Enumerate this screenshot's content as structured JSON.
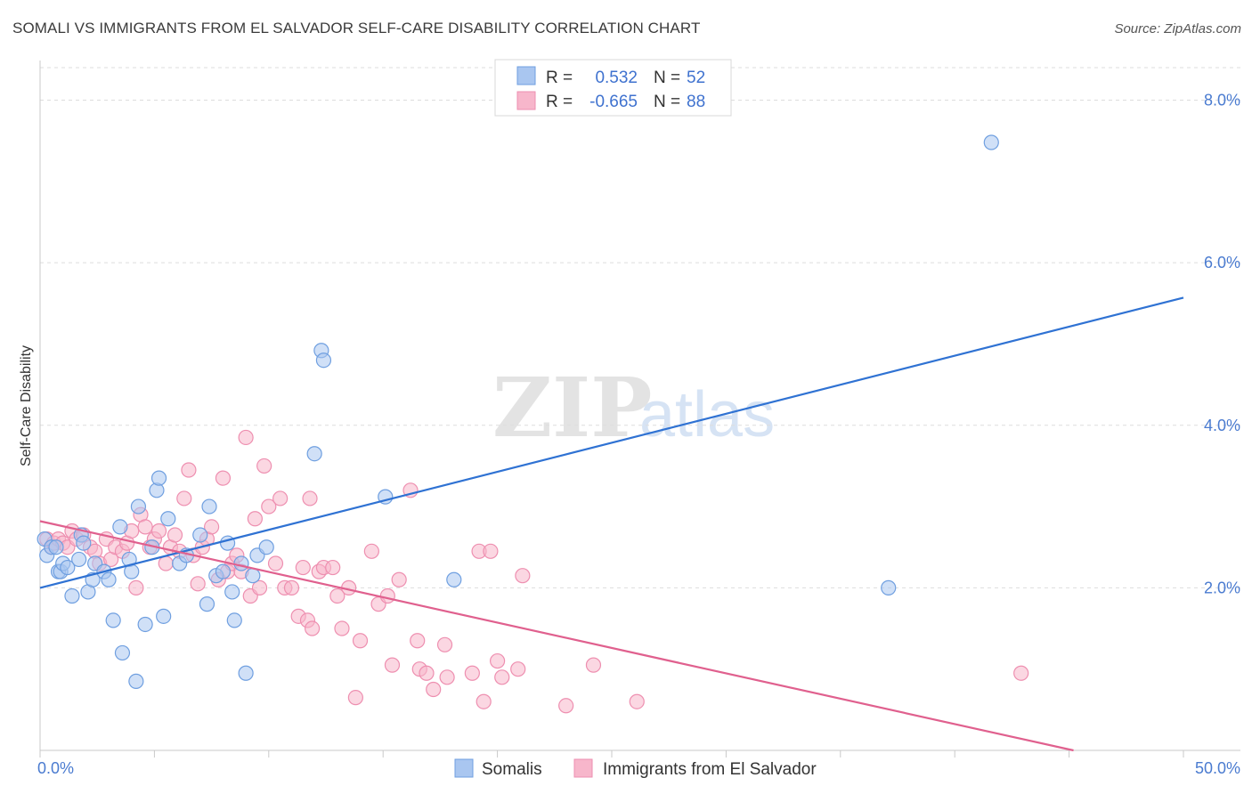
{
  "title": "SOMALI VS IMMIGRANTS FROM EL SALVADOR SELF-CARE DISABILITY CORRELATION CHART",
  "source": "Source: ZipAtlas.com",
  "watermark": {
    "zip": "ZIP",
    "atlas": "atlas"
  },
  "colors": {
    "somali_fill": "#a9c6f0",
    "somali_stroke": "#6f9fe0",
    "somali_line": "#2f72d3",
    "salvador_fill": "#f7b6cb",
    "salvador_stroke": "#ee8fb0",
    "salvador_line": "#e0608e",
    "tick_text": "#4a7bd0",
    "grid": "#dddddd"
  },
  "stats_legend": [
    {
      "r_label": "R =",
      "r_value": "0.532",
      "n_label": "N =",
      "n_value": "52"
    },
    {
      "r_label": "R =",
      "r_value": "-0.665",
      "n_label": "N =",
      "n_value": "88"
    }
  ],
  "chart_data": {
    "type": "scatter",
    "title": "SOMALI VS IMMIGRANTS FROM EL SALVADOR SELF-CARE DISABILITY CORRELATION CHART",
    "xlabel": "",
    "ylabel": "Self-Care Disability",
    "xlim": [
      0,
      50
    ],
    "ylim": [
      0,
      8.4
    ],
    "x_tick_labels": [
      "0.0%",
      "50.0%"
    ],
    "y_ticks": [
      2,
      4,
      6,
      8
    ],
    "y_tick_labels": [
      "2.0%",
      "4.0%",
      "6.0%",
      "8.0%"
    ],
    "grid": true,
    "legend_position": "bottom-center",
    "series": [
      {
        "name": "Somalis",
        "regression": {
          "r": 0.532,
          "n": 52,
          "x": [
            0,
            50
          ],
          "y": [
            2.0,
            5.57
          ]
        },
        "points": [
          [
            0.2,
            2.6
          ],
          [
            0.3,
            2.4
          ],
          [
            0.5,
            2.5
          ],
          [
            0.7,
            2.5
          ],
          [
            0.8,
            2.2
          ],
          [
            0.9,
            2.2
          ],
          [
            1.0,
            2.3
          ],
          [
            1.2,
            2.25
          ],
          [
            1.4,
            1.9
          ],
          [
            1.7,
            2.35
          ],
          [
            1.8,
            2.65
          ],
          [
            1.9,
            2.55
          ],
          [
            2.1,
            1.95
          ],
          [
            2.3,
            2.1
          ],
          [
            2.4,
            2.3
          ],
          [
            2.8,
            2.2
          ],
          [
            3.0,
            2.1
          ],
          [
            3.2,
            1.6
          ],
          [
            3.5,
            2.75
          ],
          [
            3.6,
            1.2
          ],
          [
            3.9,
            2.35
          ],
          [
            4.0,
            2.2
          ],
          [
            4.2,
            0.85
          ],
          [
            4.3,
            3.0
          ],
          [
            4.6,
            1.55
          ],
          [
            4.9,
            2.5
          ],
          [
            5.1,
            3.2
          ],
          [
            5.2,
            3.35
          ],
          [
            5.4,
            1.65
          ],
          [
            5.6,
            2.85
          ],
          [
            6.1,
            2.3
          ],
          [
            6.4,
            2.4
          ],
          [
            7.0,
            2.65
          ],
          [
            7.3,
            1.8
          ],
          [
            7.4,
            3.0
          ],
          [
            7.7,
            2.15
          ],
          [
            8.0,
            2.2
          ],
          [
            8.2,
            2.55
          ],
          [
            8.4,
            1.95
          ],
          [
            8.5,
            1.6
          ],
          [
            8.8,
            2.3
          ],
          [
            9.0,
            0.95
          ],
          [
            9.3,
            2.15
          ],
          [
            9.5,
            2.4
          ],
          [
            9.9,
            2.5
          ],
          [
            12.0,
            3.65
          ],
          [
            12.3,
            4.92
          ],
          [
            12.4,
            4.8
          ],
          [
            15.1,
            3.12
          ],
          [
            18.1,
            2.1
          ],
          [
            37.1,
            2.0
          ],
          [
            41.6,
            7.48
          ]
        ]
      },
      {
        "name": "Immigrants from El Salvador",
        "regression": {
          "r": -0.665,
          "n": 88,
          "x": [
            0,
            50
          ],
          "y": [
            2.82,
            -0.3
          ]
        },
        "points": [
          [
            0.3,
            2.6
          ],
          [
            0.5,
            2.5
          ],
          [
            0.6,
            2.55
          ],
          [
            0.8,
            2.6
          ],
          [
            1.0,
            2.55
          ],
          [
            1.2,
            2.5
          ],
          [
            1.4,
            2.7
          ],
          [
            1.6,
            2.6
          ],
          [
            1.9,
            2.65
          ],
          [
            2.2,
            2.5
          ],
          [
            2.4,
            2.45
          ],
          [
            2.6,
            2.3
          ],
          [
            2.9,
            2.6
          ],
          [
            3.1,
            2.35
          ],
          [
            3.3,
            2.5
          ],
          [
            3.6,
            2.45
          ],
          [
            3.8,
            2.55
          ],
          [
            4.0,
            2.7
          ],
          [
            4.2,
            2.0
          ],
          [
            4.4,
            2.9
          ],
          [
            4.6,
            2.75
          ],
          [
            4.8,
            2.5
          ],
          [
            5.0,
            2.6
          ],
          [
            5.2,
            2.7
          ],
          [
            5.5,
            2.3
          ],
          [
            5.7,
            2.5
          ],
          [
            5.9,
            2.65
          ],
          [
            6.1,
            2.45
          ],
          [
            6.3,
            3.1
          ],
          [
            6.5,
            3.45
          ],
          [
            6.7,
            2.4
          ],
          [
            6.9,
            2.05
          ],
          [
            7.1,
            2.5
          ],
          [
            7.3,
            2.6
          ],
          [
            7.5,
            2.75
          ],
          [
            7.8,
            2.1
          ],
          [
            8.0,
            3.35
          ],
          [
            8.2,
            2.2
          ],
          [
            8.4,
            2.3
          ],
          [
            8.6,
            2.4
          ],
          [
            8.8,
            2.2
          ],
          [
            9.0,
            3.85
          ],
          [
            9.2,
            1.9
          ],
          [
            9.4,
            2.85
          ],
          [
            9.6,
            2.0
          ],
          [
            9.8,
            3.5
          ],
          [
            10.0,
            3.0
          ],
          [
            10.3,
            2.3
          ],
          [
            10.5,
            3.1
          ],
          [
            10.7,
            2.0
          ],
          [
            11.0,
            2.0
          ],
          [
            11.3,
            1.65
          ],
          [
            11.5,
            2.25
          ],
          [
            11.7,
            1.6
          ],
          [
            11.9,
            1.5
          ],
          [
            11.8,
            3.1
          ],
          [
            12.2,
            2.2
          ],
          [
            12.4,
            2.25
          ],
          [
            12.8,
            2.25
          ],
          [
            13.0,
            1.9
          ],
          [
            13.2,
            1.5
          ],
          [
            13.5,
            2.0
          ],
          [
            13.8,
            0.65
          ],
          [
            14.0,
            1.35
          ],
          [
            14.5,
            2.45
          ],
          [
            14.8,
            1.8
          ],
          [
            15.2,
            1.9
          ],
          [
            15.4,
            1.05
          ],
          [
            15.7,
            2.1
          ],
          [
            16.2,
            3.2
          ],
          [
            16.5,
            1.35
          ],
          [
            16.6,
            1.0
          ],
          [
            16.9,
            0.95
          ],
          [
            17.2,
            0.75
          ],
          [
            17.7,
            1.3
          ],
          [
            17.8,
            0.9
          ],
          [
            18.9,
            0.95
          ],
          [
            19.2,
            2.45
          ],
          [
            19.7,
            2.45
          ],
          [
            19.4,
            0.6
          ],
          [
            20.0,
            1.1
          ],
          [
            20.2,
            0.9
          ],
          [
            20.9,
            1.0
          ],
          [
            21.1,
            2.15
          ],
          [
            23.0,
            0.55
          ],
          [
            24.2,
            1.05
          ],
          [
            26.1,
            0.6
          ],
          [
            42.9,
            0.95
          ]
        ]
      }
    ]
  }
}
